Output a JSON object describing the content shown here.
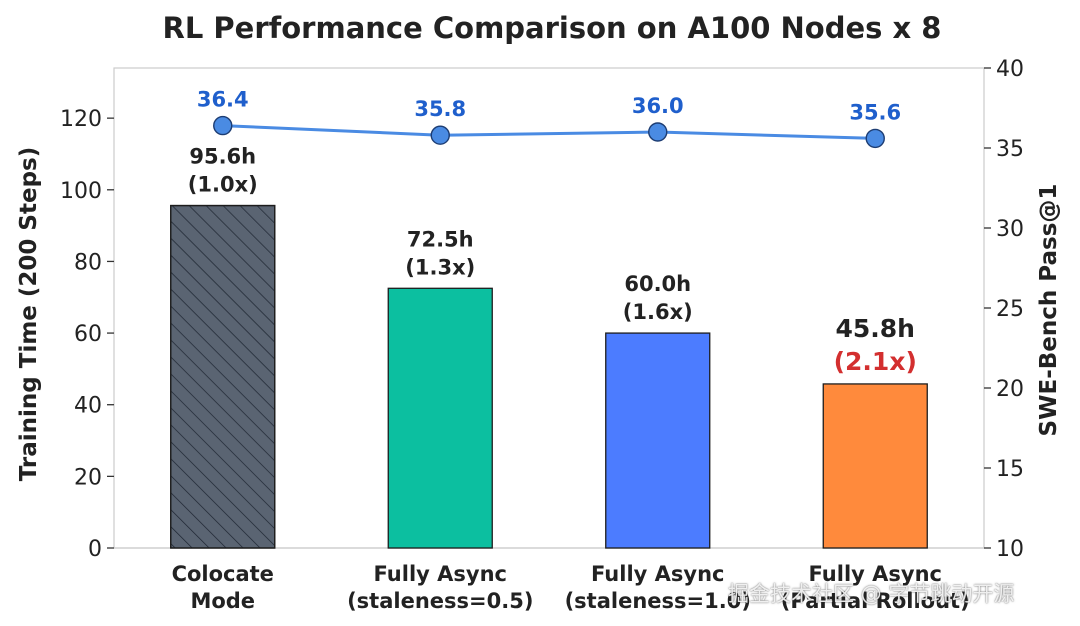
{
  "chart_data": {
    "type": "bar+line",
    "title": "RL Performance Comparison on A100 Nodes x 8",
    "categories": [
      [
        "Colocate",
        "Mode"
      ],
      [
        "Fully Async",
        "(staleness=0.5)"
      ],
      [
        "Fully Async",
        "(staleness=1.0)"
      ],
      [
        "Fully Async",
        "(Partial Rollout)"
      ]
    ],
    "bars": {
      "name": "Training Time (200 Steps)",
      "values": [
        95.6,
        72.5,
        60.0,
        45.8
      ],
      "value_labels": [
        "95.6h",
        "72.5h",
        "60.0h",
        "45.8h"
      ],
      "speedup_labels": [
        "(1.0x)",
        "(1.3x)",
        "(1.6x)",
        "(2.1x)"
      ],
      "colors": [
        "#5a6472",
        "#0cbfa0",
        "#4c7cff",
        "#ff8a3c"
      ],
      "hatched": [
        true,
        false,
        false,
        false
      ],
      "highlight_last_color": "#d32f2f"
    },
    "line": {
      "name": "SWE-Bench Pass@1",
      "values": [
        36.4,
        35.8,
        36.0,
        35.6
      ],
      "labels": [
        "36.4",
        "35.8",
        "36.0",
        "35.6"
      ],
      "color": "#4a8be3",
      "label_color": "#1f5fcc"
    },
    "ylabel": "Training Time (200 Steps)",
    "ylim": [
      0,
      134
    ],
    "yticks": [
      0,
      20,
      40,
      60,
      80,
      100,
      120
    ],
    "y2label": "SWE-Bench Pass@1",
    "y2lim": [
      10,
      40
    ],
    "y2ticks": [
      10,
      15,
      20,
      25,
      30,
      35,
      40
    ],
    "grid": false
  },
  "watermark": "掘金技术社区 @ 字节跳动开源"
}
